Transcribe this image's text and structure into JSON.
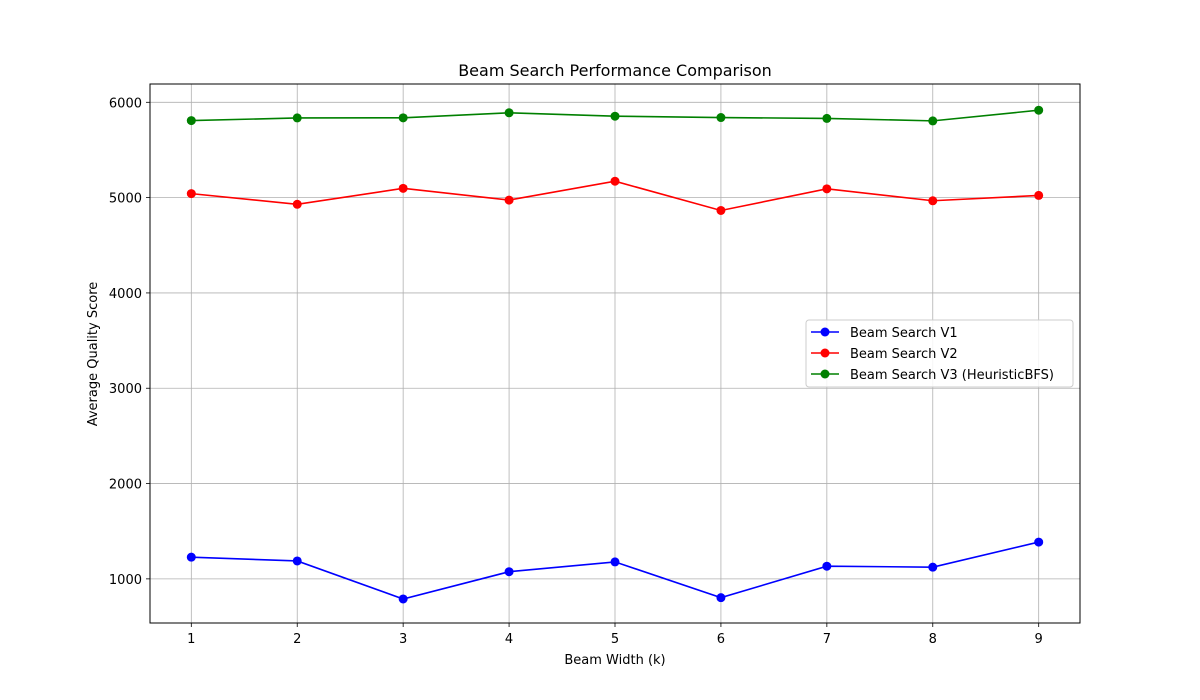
{
  "chart_data": {
    "type": "line",
    "title": "Beam Search Performance Comparison",
    "xlabel": "Beam Width (k)",
    "ylabel": "Average Quality Score",
    "x": [
      1,
      2,
      3,
      4,
      5,
      6,
      7,
      8,
      9
    ],
    "xlim": [
      0.61,
      9.39
    ],
    "ylim": [
      537,
      6192
    ],
    "yticks": [
      1000,
      2000,
      3000,
      4000,
      5000,
      6000
    ],
    "grid": true,
    "legend_position": "center-right",
    "series": [
      {
        "name": "Beam Search V1",
        "color": "#0000ff",
        "marker": "circle",
        "values": [
          1228,
          1188,
          789,
          1075,
          1178,
          803,
          1133,
          1123,
          1386
        ]
      },
      {
        "name": "Beam Search V2",
        "color": "#ff0000",
        "marker": "circle",
        "values": [
          5042,
          4930,
          5097,
          4974,
          5172,
          4865,
          5092,
          4967,
          5023
        ]
      },
      {
        "name": "Beam Search V3 (HeuristicBFS)",
        "color": "#008000",
        "marker": "circle",
        "values": [
          5808,
          5836,
          5837,
          5890,
          5854,
          5840,
          5831,
          5805,
          5917
        ]
      }
    ]
  }
}
